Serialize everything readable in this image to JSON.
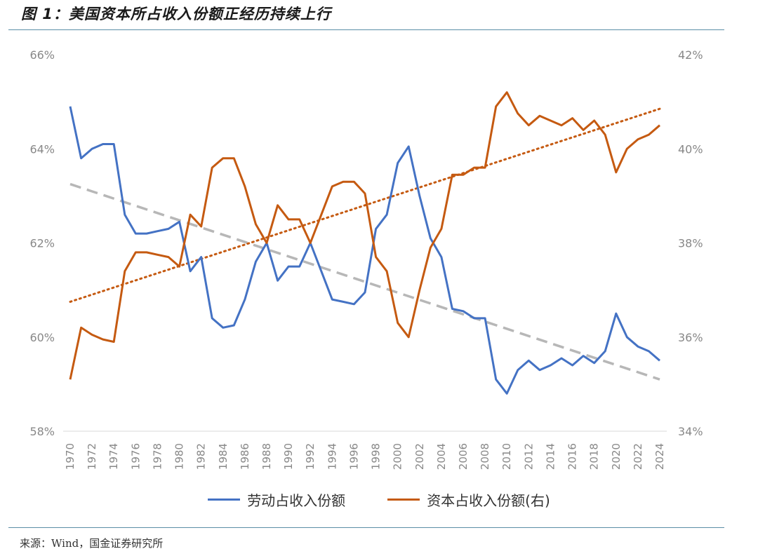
{
  "figure": {
    "title": "图 1：美国资本所占收入份额正经历持续上行",
    "source": "来源：Wind，国金证券研究所"
  },
  "colors": {
    "labor": "#4472c4",
    "capital": "#c55a11",
    "labor_trend": "#b7b7b7",
    "capital_trend": "#c55a11",
    "axis_text": "#888888",
    "rule": "#5a8ea6"
  },
  "chart_data": {
    "type": "line",
    "x": [
      1970,
      1971,
      1972,
      1973,
      1974,
      1975,
      1976,
      1977,
      1978,
      1979,
      1980,
      1981,
      1982,
      1983,
      1984,
      1985,
      1986,
      1987,
      1988,
      1989,
      1990,
      1991,
      1992,
      1993,
      1994,
      1995,
      1996,
      1997,
      1998,
      1999,
      2000,
      2001,
      2002,
      2003,
      2004,
      2005,
      2006,
      2007,
      2008,
      2009,
      2010,
      2011,
      2012,
      2013,
      2014,
      2015,
      2016,
      2017,
      2018,
      2019,
      2020,
      2021,
      2022,
      2023,
      2024
    ],
    "x_tick_labels": [
      "1970",
      "1972",
      "1974",
      "1976",
      "1978",
      "1980",
      "1982",
      "1984",
      "1986",
      "1988",
      "1990",
      "1992",
      "1994",
      "1996",
      "1998",
      "2000",
      "2002",
      "2004",
      "2006",
      "2008",
      "2010",
      "2012",
      "2014",
      "2016",
      "2018",
      "2020",
      "2022",
      "2024"
    ],
    "y_left": {
      "range": [
        58,
        66
      ],
      "ticks": [
        58,
        60,
        62,
        64,
        66
      ],
      "tick_labels": [
        "58%",
        "60%",
        "62%",
        "64%",
        "66%"
      ]
    },
    "y_right": {
      "range": [
        34,
        42
      ],
      "ticks": [
        34,
        36,
        38,
        40,
        42
      ],
      "tick_labels": [
        "34%",
        "36%",
        "38%",
        "40%",
        "42%"
      ]
    },
    "series": [
      {
        "name": "劳动占收入份额",
        "axis": "left",
        "values": [
          64.9,
          63.8,
          64.0,
          64.1,
          64.1,
          62.6,
          62.2,
          62.2,
          62.25,
          62.3,
          62.45,
          61.4,
          61.7,
          60.4,
          60.2,
          60.25,
          60.8,
          61.6,
          62.0,
          61.2,
          61.5,
          61.5,
          62.0,
          61.4,
          60.8,
          60.75,
          60.7,
          60.95,
          62.3,
          62.6,
          63.7,
          64.05,
          63.0,
          62.1,
          61.7,
          60.6,
          60.55,
          60.4,
          60.4,
          59.1,
          58.8,
          59.3,
          59.5,
          59.3,
          59.4,
          59.55,
          59.4,
          59.6,
          59.45,
          59.7,
          60.5,
          60.0,
          59.8,
          59.7,
          59.5
        ]
      },
      {
        "name": "资本占收入份额(右)",
        "axis": "right",
        "values": [
          35.1,
          36.2,
          36.05,
          35.95,
          35.9,
          37.4,
          37.8,
          37.8,
          37.75,
          37.7,
          37.5,
          38.6,
          38.35,
          39.6,
          39.8,
          39.8,
          39.2,
          38.4,
          38.0,
          38.8,
          38.5,
          38.5,
          38.0,
          38.6,
          39.2,
          39.3,
          39.3,
          39.05,
          37.7,
          37.4,
          36.3,
          36.0,
          37.0,
          37.9,
          38.3,
          39.45,
          39.45,
          39.6,
          39.6,
          40.9,
          41.2,
          40.75,
          40.5,
          40.7,
          40.6,
          40.5,
          40.65,
          40.4,
          40.6,
          40.3,
          39.5,
          40.0,
          40.2,
          40.3,
          40.5
        ]
      }
    ],
    "trendlines": [
      {
        "of": "劳动占收入份额",
        "axis": "left",
        "style": "dashed",
        "x": [
          1970,
          2024
        ],
        "y": [
          63.25,
          59.1
        ]
      },
      {
        "of": "资本占收入份额(右)",
        "axis": "right",
        "style": "dotted",
        "x": [
          1970,
          2024
        ],
        "y": [
          36.75,
          40.85
        ]
      }
    ],
    "legend": {
      "position": "bottom"
    },
    "grid": false
  }
}
